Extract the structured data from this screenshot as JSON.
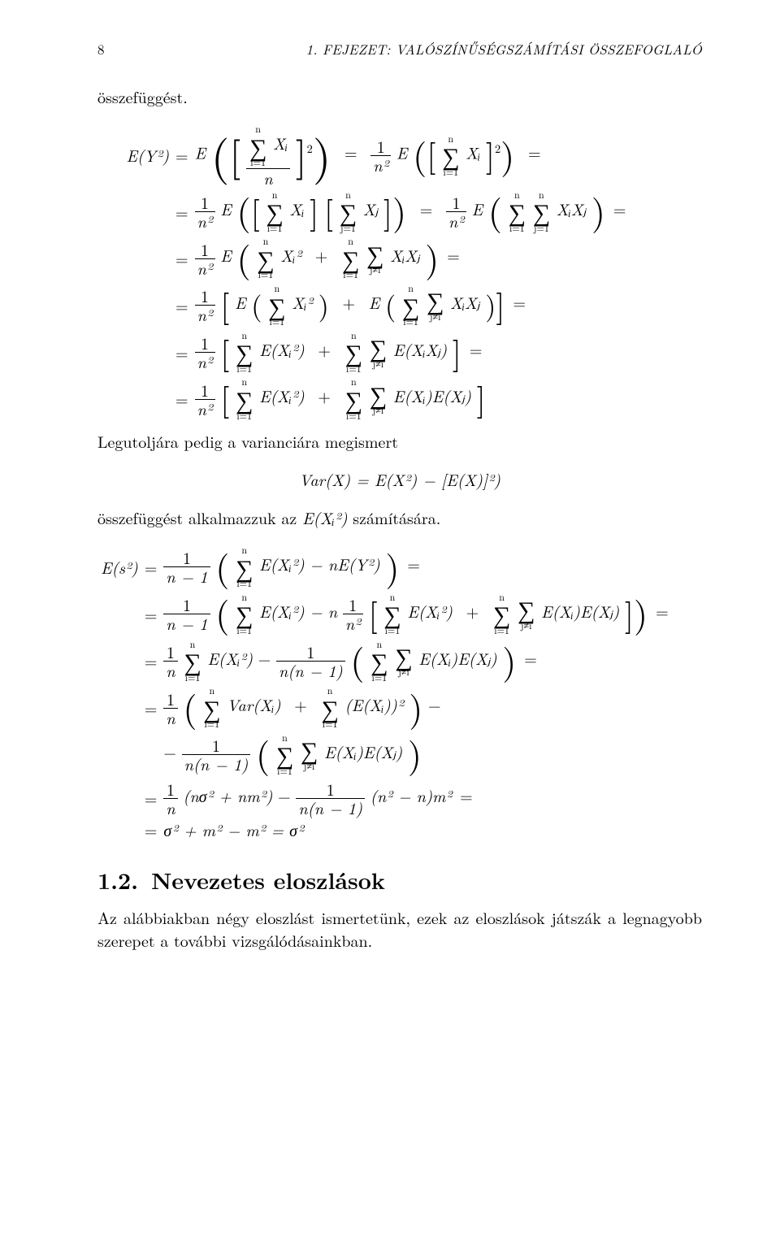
{
  "header": {
    "page": "8",
    "chapter": "1. FEJEZET: VALÓSZÍNŰSÉGSZÁMÍTÁSI ÖSSZEFOGLALÓ"
  },
  "para1": "összefüggést.",
  "eq1": {
    "lhs": "E(Y²)",
    "row1_rhs_a_pre": "E",
    "row1_rhs_sum_lo": "i=1",
    "row1_rhs_sum_hi": "n",
    "row1_rhs_X": "Xᵢ",
    "row1_rhs_den": "n",
    "row1_rhs_pow": "2",
    "row1_rhs_b_frac_num": "1",
    "row1_rhs_b_frac_den": "n²",
    "row1_rhs_b_pre": "E",
    "row1_rhs_b_sum_lo": "i=1",
    "row1_rhs_b_sum_hi": "n",
    "row1_rhs_b_X": "Xᵢ",
    "row1_rhs_b_pow": "2",
    "row2_f_num": "1",
    "row2_f_den": "n²",
    "row2_E": "E",
    "row2_s1_lo": "i=1",
    "row2_s1_hi": "n",
    "row2_X1": "Xᵢ",
    "row2_s2_lo": "j=1",
    "row2_s2_hi": "n",
    "row2_X2": "Xⱼ",
    "row2_f2_num": "1",
    "row2_f2_den": "n²",
    "row2_E2": "E",
    "row2_s3_lo": "i=1",
    "row2_s3_hi": "n",
    "row2_s4_lo": "j=1",
    "row2_s4_hi": "n",
    "row2_XX": "XᵢXⱼ",
    "row3_f_num": "1",
    "row3_f_den": "n²",
    "row3_E": "E",
    "row3_s1_lo": "i=1",
    "row3_s1_hi": "n",
    "row3_X2i": "Xᵢ²",
    "row3_plus": "+",
    "row3_s2_lo": "i=1",
    "row3_s2_hi": "n",
    "row3_s3_lo": "j≠i",
    "row3_s3_hi": "",
    "row3_XX": "XᵢXⱼ",
    "row4_f_num": "1",
    "row4_f_den": "n²",
    "row4_E1": "E",
    "row4_s1_lo": "i=1",
    "row4_s1_hi": "n",
    "row4_X2i": "Xᵢ²",
    "row4_plus": "+",
    "row4_E2": "E",
    "row4_s2_lo": "i=1",
    "row4_s2_hi": "n",
    "row4_s3_lo": "j≠i",
    "row4_s3_hi": "",
    "row4_XX": "XᵢXⱼ",
    "row5_f_num": "1",
    "row5_f_den": "n²",
    "row5_s1_lo": "i=1",
    "row5_s1_hi": "n",
    "row5_EX2": "E(Xᵢ²)",
    "row5_plus": "+",
    "row5_s2_lo": "i=1",
    "row5_s2_hi": "n",
    "row5_s3_lo": "j≠i",
    "row5_s3_hi": "",
    "row5_EXX": "E(XᵢXⱼ)",
    "row6_f_num": "1",
    "row6_f_den": "n²",
    "row6_s1_lo": "i=1",
    "row6_s1_hi": "n",
    "row6_EX2": "E(Xᵢ²)",
    "row6_plus": "+",
    "row6_s2_lo": "i=1",
    "row6_s2_hi": "n",
    "row6_s3_lo": "j≠i",
    "row6_s3_hi": "",
    "row6_EXEX": "E(Xᵢ)E(Xⱼ)"
  },
  "para2": "Legutoljára pedig a varianciára megismert",
  "var_eq": "Var(X) = E(X²) − [E(X)]²)",
  "para3_a": "összefüggést alkalmazzuk az ",
  "para3_b": "E(Xᵢ²)",
  "para3_c": " számítására.",
  "eq2": {
    "lhs": "E(s²)",
    "r1_f_num": "1",
    "r1_f_den": "n − 1",
    "r1_s_lo": "i=1",
    "r1_s_hi": "n",
    "r1_EX2": "E(Xᵢ²)",
    "r1_minus": " − nE(Y²)",
    "r2_f_num": "1",
    "r2_f_den": "n − 1",
    "r2_s1_lo": "i=1",
    "r2_s1_hi": "n",
    "r2_EX2": "E(Xᵢ²)",
    "r2_minus_n": " − n",
    "r2_f2_num": "1",
    "r2_f2_den": "n²",
    "r2_s2_lo": "i=1",
    "r2_s2_hi": "n",
    "r2_EX2b": "E(Xᵢ²)",
    "r2_plus": "+",
    "r2_s3_lo": "i=1",
    "r2_s3_hi": "n",
    "r2_s4_lo": "j≠i",
    "r2_s4_hi": "",
    "r2_EXEX": "E(Xᵢ)E(Xⱼ)",
    "r3_f_num": "1",
    "r3_f_den": "n",
    "r3_s1_lo": "i=1",
    "r3_s1_hi": "n",
    "r3_EX2": "E(Xᵢ²)",
    "r3_minus": " − ",
    "r3_f2_num": "1",
    "r3_f2_den": "n(n − 1)",
    "r3_s2_lo": "i=1",
    "r3_s2_hi": "n",
    "r3_s3_lo": "j≠i",
    "r3_s3_hi": "",
    "r3_EXEX": "E(Xᵢ)E(Xⱼ)",
    "r4_f_num": "1",
    "r4_f_den": "n",
    "r4_s1_lo": "i=1",
    "r4_s1_hi": "n",
    "r4_Var": "Var(Xᵢ)",
    "r4_plus": "+",
    "r4_s2_lo": "i=1",
    "r4_s2_hi": "n",
    "r4_EX2": "(E(Xᵢ))²",
    "r4_minus": " −",
    "r5_minus": "−",
    "r5_f_num": "1",
    "r5_f_den": "n(n − 1)",
    "r5_s1_lo": "i=1",
    "r5_s1_hi": "n",
    "r5_s2_lo": "j≠i",
    "r5_s2_hi": "",
    "r5_EXEX": "E(Xᵢ)E(Xⱼ)",
    "r6_f_num": "1",
    "r6_f_den": "n",
    "r6_a": "(nσ² + nm²)",
    "r6_minus": " − ",
    "r6_f2_num": "1",
    "r6_f2_den": "n(n − 1)",
    "r6_b": "(n² − n)m²",
    "r7": "σ² + m² − m² = σ²"
  },
  "section": {
    "num": "1.2.",
    "title": "Nevezetes eloszlások"
  },
  "body": "Az alábbiakban négy eloszlást ismertetünk, ezek az eloszlások játszák a legnagyobb szerepet a további vizsgálódásainkban."
}
